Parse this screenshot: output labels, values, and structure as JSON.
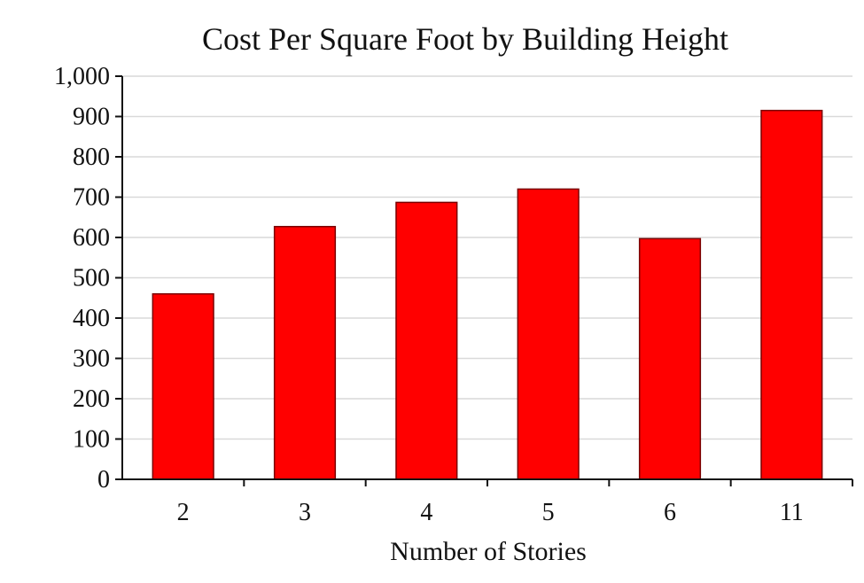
{
  "chart_data": {
    "type": "bar",
    "title": "Cost Per Square Foot by Building Height",
    "xlabel": "Number of Stories",
    "ylabel": "",
    "categories": [
      "2",
      "3",
      "4",
      "5",
      "6",
      "11"
    ],
    "values": [
      460,
      627,
      687,
      720,
      597,
      915
    ],
    "ylim": [
      0,
      1000
    ],
    "yticks": [
      0,
      100,
      200,
      300,
      400,
      500,
      600,
      700,
      800,
      900,
      1000
    ],
    "ytick_labels": [
      "0",
      "100",
      "200",
      "300",
      "400",
      "500",
      "600",
      "700",
      "800",
      "900",
      "1,000"
    ],
    "grid": true,
    "legend": "none",
    "bar_color": "#ff0000"
  }
}
